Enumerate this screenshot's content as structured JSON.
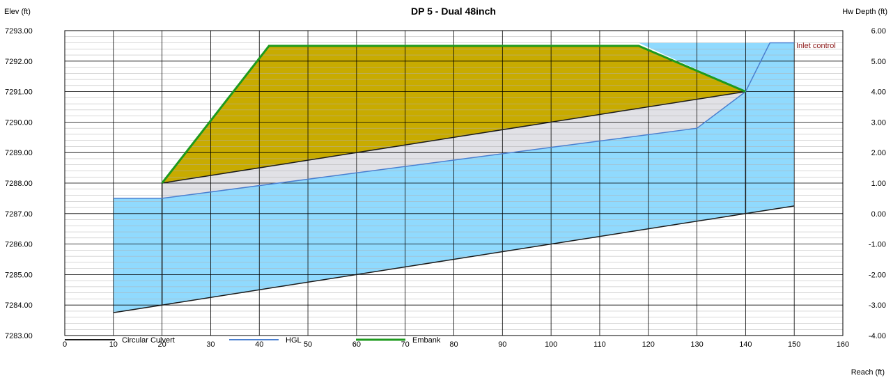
{
  "chart_data": {
    "type": "area",
    "title": "DP 5 - Dual 48inch",
    "y_left_label": "Elev (ft)",
    "y_right_label": "Hw Depth (ft)",
    "xlabel": "Reach (ft)",
    "xlim": [
      0,
      160
    ],
    "ylim_left": [
      7283.0,
      7293.0
    ],
    "ylim_right": [
      -4.0,
      6.0
    ],
    "x_ticks": [
      0,
      10,
      20,
      30,
      40,
      50,
      60,
      70,
      80,
      90,
      100,
      110,
      120,
      130,
      140,
      150,
      160
    ],
    "y_left_ticks": [
      "7293.00",
      "7292.00",
      "7291.00",
      "7290.00",
      "7289.00",
      "7288.00",
      "7287.00",
      "7286.00",
      "7285.00",
      "7284.00",
      "7283.00"
    ],
    "y_right_ticks": [
      "6.00",
      "5.00",
      "4.00",
      "3.00",
      "2.00",
      "1.00",
      "0.00",
      "-1.00",
      "-2.00",
      "-3.00",
      "-4.00"
    ],
    "grid": true,
    "legend_position": "bottom-left",
    "annotation": "Inlet control",
    "colors": {
      "culvert": "#1a1a1a",
      "hgl": "#4a7fd0",
      "embank": "#1d9a1d",
      "embank_fill": "#c8ab00",
      "water_fill": "#90dafe",
      "pipe_fill": "#e1e1e6",
      "annotation": "#8b1a1a",
      "grid": "#b0b0b0"
    },
    "series": [
      {
        "name": "Circular Culvert",
        "invert": [
          [
            20,
            7284.0
          ],
          [
            140,
            7287.0
          ]
        ],
        "crown": [
          [
            20,
            7288.0
          ],
          [
            140,
            7291.0
          ]
        ]
      },
      {
        "name": "HGL",
        "points": [
          [
            10,
            7287.5
          ],
          [
            20,
            7287.5
          ],
          [
            130,
            7289.8
          ],
          [
            140,
            7291.0
          ],
          [
            145,
            7292.6
          ],
          [
            150,
            7292.6
          ]
        ]
      },
      {
        "name": "Embank",
        "points": [
          [
            20,
            7288.0
          ],
          [
            42,
            7292.5
          ],
          [
            118,
            7292.5
          ],
          [
            140,
            7291.0
          ]
        ]
      }
    ],
    "water_region": {
      "downstream_channel": [
        [
          10,
          7283.75
        ],
        [
          20,
          7284.0
        ]
      ],
      "upstream_channel": [
        [
          140,
          7287.0
        ],
        [
          150,
          7287.25
        ]
      ],
      "headwater_elev": 7292.6,
      "tailwater_elev": 7287.5
    }
  }
}
